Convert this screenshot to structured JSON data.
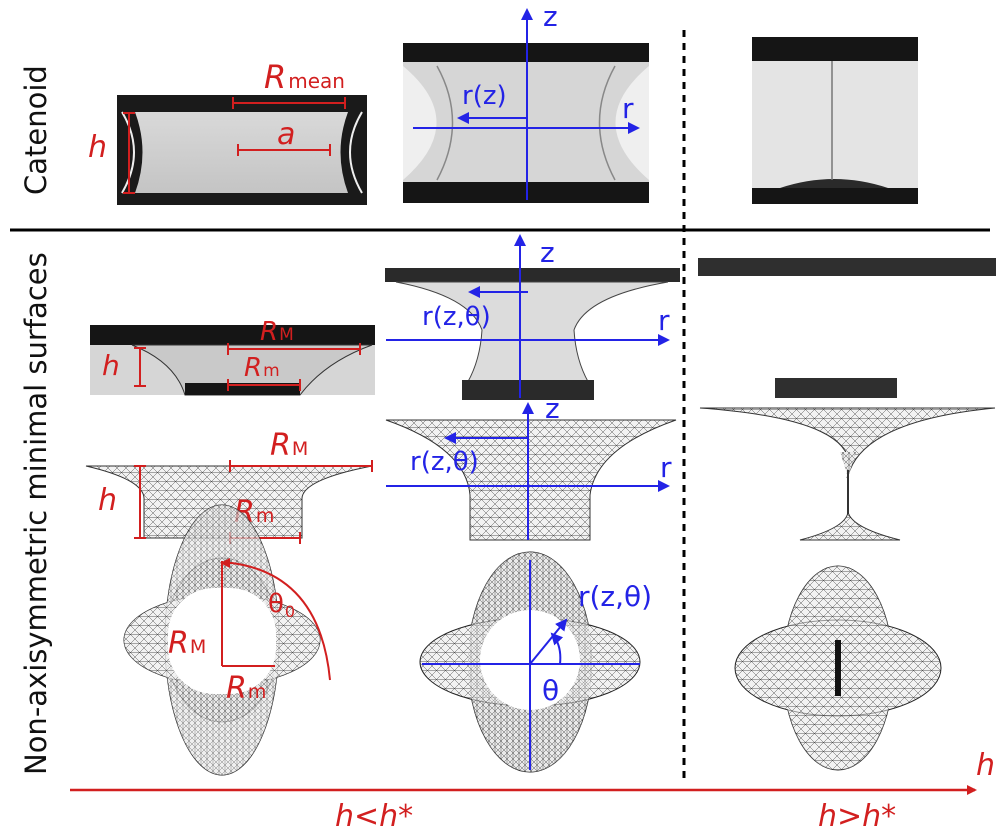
{
  "row_labels": {
    "catenoid": "Catenoid",
    "non_axisymmetric": "Non-axisymmetric minimal surfaces"
  },
  "catenoid_left": {
    "R_mean": "R",
    "R_mean_sub": "mean",
    "a": "a",
    "h": "h"
  },
  "catenoid_mid": {
    "z": "z",
    "r": "r",
    "rz": "r(z)"
  },
  "photo_mid": {
    "z": "z",
    "r": "r",
    "rz": "r(z,θ)"
  },
  "photo_left": {
    "R_M": "R",
    "R_M_sub": "M",
    "R_m": "R",
    "R_m_sub": "m",
    "h": "h"
  },
  "mesh_left": {
    "R_M": "R",
    "R_M_sub": "M",
    "R_m": "R",
    "R_m_sub": "m",
    "h": "h"
  },
  "mesh_mid": {
    "z": "z",
    "r": "r",
    "rz": "r(z,θ)"
  },
  "top_left": {
    "theta0": "θ",
    "theta0_sub": "0",
    "R_M": "R",
    "R_M_sub": "M",
    "R_m": "R",
    "R_m_sub": "m"
  },
  "top_mid": {
    "rz": "r(z,θ)",
    "theta": "θ"
  },
  "axis": {
    "h": "h",
    "h_less": "h<h*",
    "h_greater": "h>h*"
  },
  "colors": {
    "red": "#d21f1f",
    "blue": "#2323e6"
  }
}
